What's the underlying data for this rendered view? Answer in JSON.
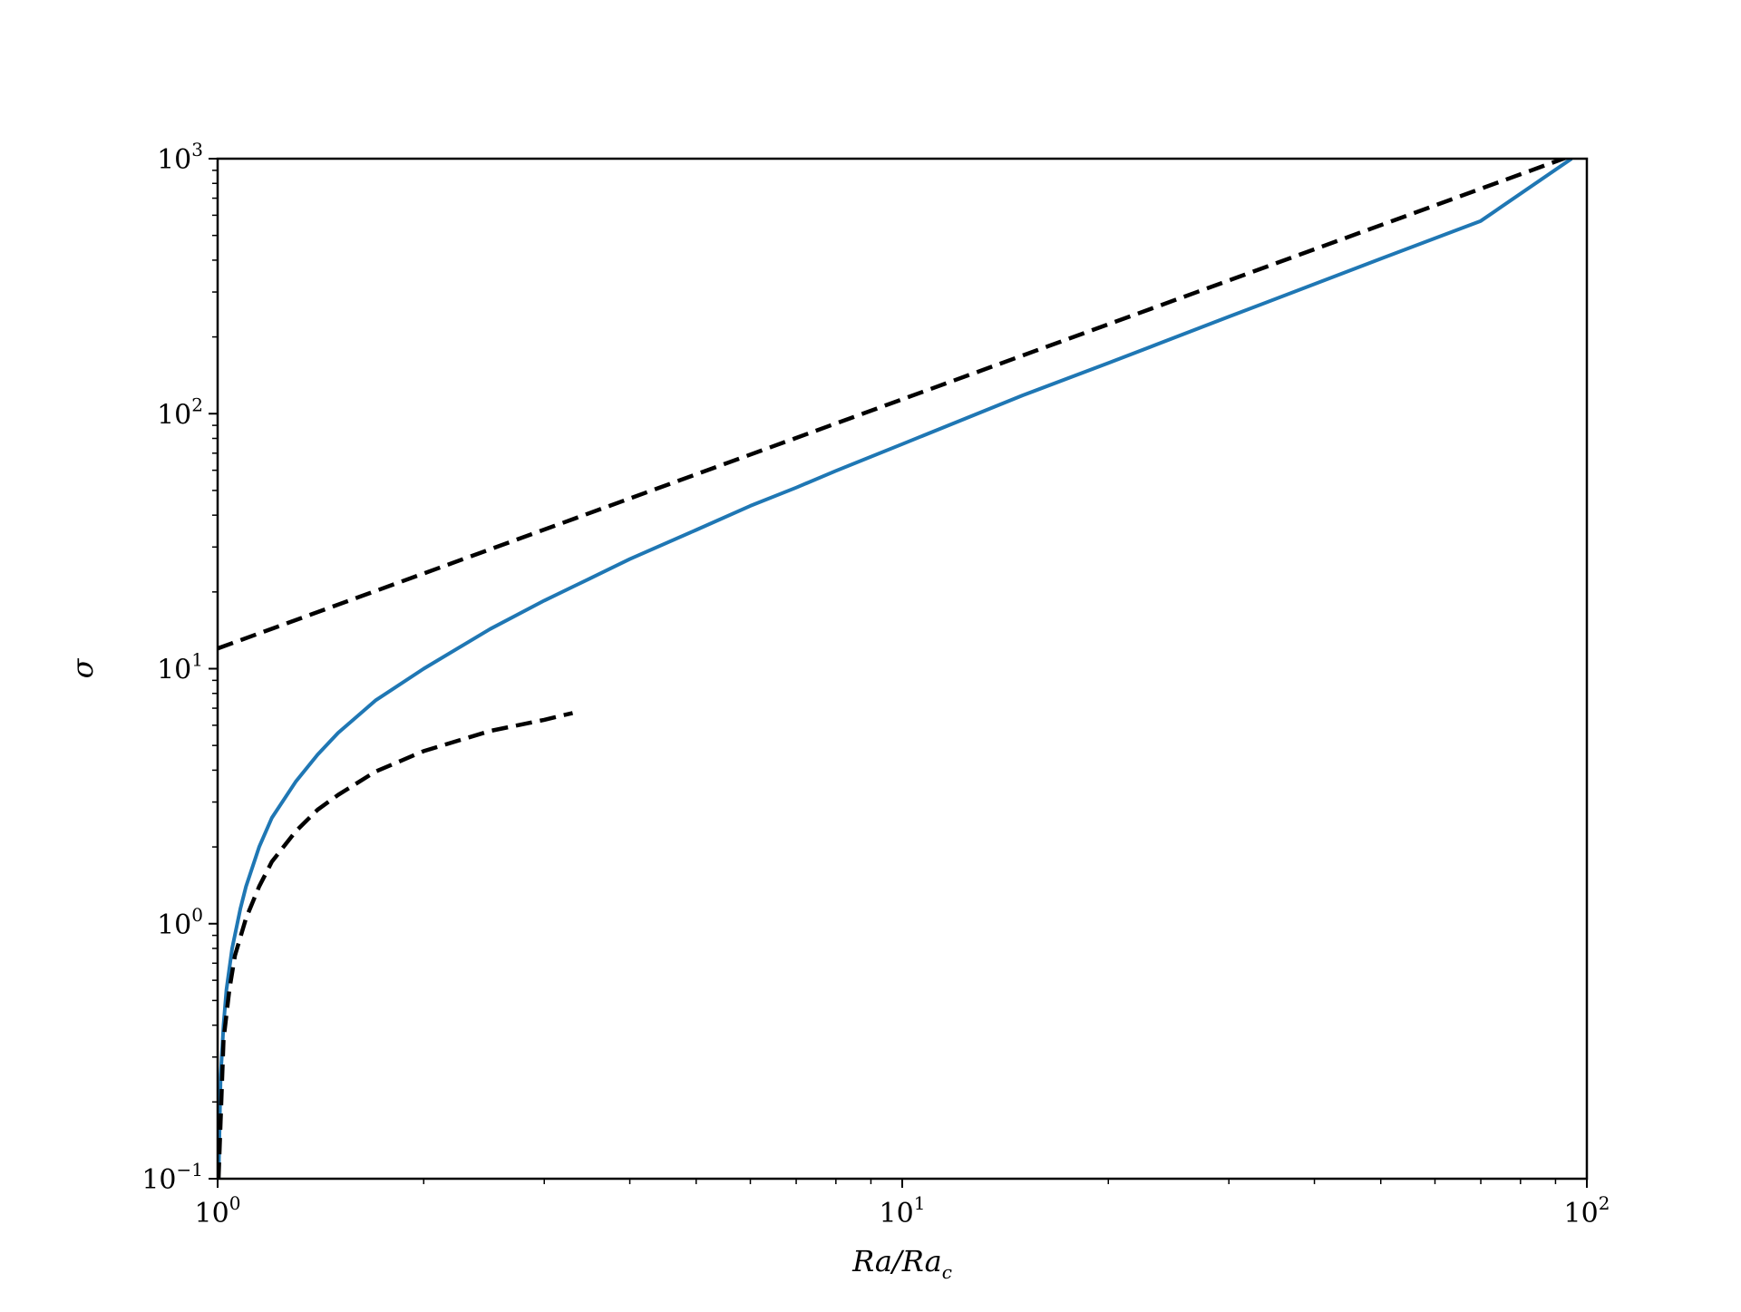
{
  "chart_data": {
    "type": "line",
    "xscale": "log",
    "yscale": "log",
    "xlim": [
      1,
      100
    ],
    "ylim": [
      0.1,
      1000
    ],
    "grid": false,
    "xlabel": "Ra/Ra",
    "xlabel_sub": "c",
    "ylabel": "σ",
    "x_ticks": [
      {
        "base": "10",
        "exp": "0",
        "value": 1
      },
      {
        "base": "10",
        "exp": "1",
        "value": 10
      },
      {
        "base": "10",
        "exp": "2",
        "value": 100
      }
    ],
    "y_ticks": [
      {
        "base": "10",
        "exp": "−1",
        "value": 0.1
      },
      {
        "base": "10",
        "exp": "0",
        "value": 1
      },
      {
        "base": "10",
        "exp": "1",
        "value": 10
      },
      {
        "base": "10",
        "exp": "2",
        "value": 100
      },
      {
        "base": "10",
        "exp": "3",
        "value": 1000
      }
    ],
    "series": [
      {
        "color": "#1f77b4",
        "style": "solid",
        "x": [
          1.003,
          1.01,
          1.02,
          1.03,
          1.05,
          1.08,
          1.1,
          1.15,
          1.2,
          1.3,
          1.4,
          1.5,
          1.7,
          2,
          2.5,
          3,
          3.5,
          4,
          5,
          6,
          7,
          8,
          10,
          15,
          20,
          30,
          50,
          70,
          95
        ],
        "y": [
          0.1,
          0.25,
          0.4,
          0.55,
          0.8,
          1.15,
          1.4,
          2.0,
          2.6,
          3.6,
          4.6,
          5.6,
          7.5,
          10.0,
          14.3,
          18.5,
          22.6,
          26.9,
          35.0,
          43.5,
          51.3,
          59.7,
          76.0,
          118.0,
          158.0,
          240.0,
          405.0,
          570.0,
          1000.0
        ]
      },
      {
        "color": "#000000",
        "style": "dashed",
        "x": [
          1,
          100
        ],
        "y": [
          12.0,
          1080.0
        ]
      },
      {
        "color": "#000000",
        "style": "dashed",
        "x": [
          1.003,
          1.02,
          1.04,
          1.06,
          1.1,
          1.15,
          1.2,
          1.3,
          1.4,
          1.5,
          1.7,
          2.0,
          2.5,
          3.0,
          3.3
        ],
        "y": [
          0.1,
          0.35,
          0.55,
          0.75,
          1.05,
          1.4,
          1.75,
          2.3,
          2.8,
          3.2,
          3.95,
          4.75,
          5.7,
          6.3,
          6.7
        ]
      }
    ]
  }
}
